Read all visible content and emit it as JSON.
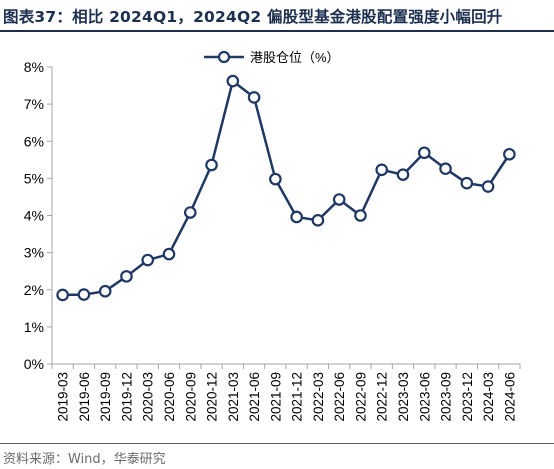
{
  "figure_title": "图表37：相比 2024Q1，2024Q2 偏股型基金港股配置强度小幅回升",
  "source_note": "资料来源：Wind，华泰研究",
  "colors": {
    "line": "#1f3864",
    "marker_fill": "#ffffff",
    "axis": "#a6a6a6",
    "text": "#000000",
    "title": "#1c2f4f"
  },
  "chart_data": {
    "type": "line",
    "title": "图表37：相比 2024Q1，2024Q2 偏股型基金港股配置强度小幅回升",
    "xlabel": "",
    "ylabel": "",
    "ylim": [
      0,
      8
    ],
    "ytick_labels": [
      "0%",
      "1%",
      "2%",
      "3%",
      "4%",
      "5%",
      "6%",
      "7%",
      "8%"
    ],
    "grid": false,
    "legend_position": "top-center",
    "categories": [
      "2019-03",
      "2019-06",
      "2019-09",
      "2019-12",
      "2020-03",
      "2020-06",
      "2020-09",
      "2020-12",
      "2021-03",
      "2021-06",
      "2021-09",
      "2021-12",
      "2022-03",
      "2022-06",
      "2022-09",
      "2022-12",
      "2023-03",
      "2023-06",
      "2023-09",
      "2023-12",
      "2024-03",
      "2024-06"
    ],
    "series": [
      {
        "name": "港股仓位（%）",
        "values": [
          1.86,
          1.87,
          1.96,
          2.36,
          2.8,
          2.96,
          4.08,
          5.36,
          7.62,
          7.18,
          4.98,
          3.96,
          3.87,
          4.43,
          4.0,
          5.23,
          5.1,
          5.69,
          5.26,
          4.87,
          4.78,
          5.65
        ]
      }
    ]
  }
}
